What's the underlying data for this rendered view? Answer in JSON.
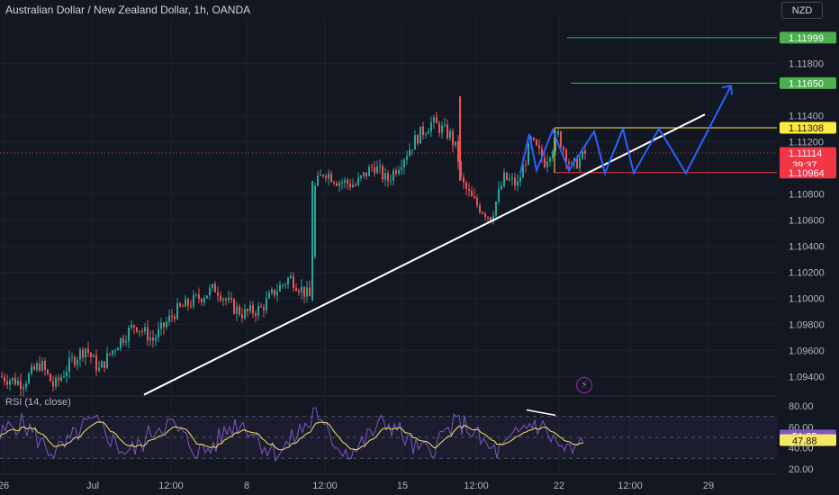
{
  "header": {
    "title": "Australian Dollar / New Zealand Dollar, 1h, OANDA",
    "currency": "NZD"
  },
  "rsi": {
    "label": "RSI (14, close)",
    "upper": 70,
    "lower": 30,
    "ticks": [
      "80.00",
      "60.00",
      "40.00",
      "20.00"
    ],
    "rsi_badge": "51.35",
    "ma_badge": "47.88",
    "rsi_color": "#7e57c2",
    "ma_color": "#f5e663"
  },
  "icons": {
    "alert": "lightning-icon"
  },
  "chart_data": {
    "type": "candlestick",
    "symbol": "AUDNZD",
    "timeframe": "1h",
    "ylim": [
      1.0925,
      1.1215
    ],
    "y_ticks": [
      "1.09400",
      "1.09600",
      "1.09800",
      "1.10000",
      "1.10200",
      "1.10400",
      "1.10600",
      "1.10800",
      "1.11200",
      "1.11400",
      "1.11800"
    ],
    "x_ticks": [
      "26",
      "Jul",
      "12:00",
      "8",
      "12:00",
      "15",
      "12:00",
      "22",
      "12:00",
      "29"
    ],
    "price_path": [
      [
        0,
        1.094
      ],
      [
        25,
        1.0935
      ],
      [
        45,
        1.095
      ],
      [
        60,
        1.0932
      ],
      [
        80,
        1.0952
      ],
      [
        95,
        1.0962
      ],
      [
        110,
        1.0945
      ],
      [
        130,
        1.0965
      ],
      [
        150,
        1.098
      ],
      [
        170,
        1.0968
      ],
      [
        195,
        1.099
      ],
      [
        215,
        1.0998
      ],
      [
        240,
        1.1008
      ],
      [
        255,
        1.0995
      ],
      [
        270,
        1.0988
      ],
      [
        290,
        1.0992
      ],
      [
        305,
        1.1005
      ],
      [
        322,
        1.1016
      ],
      [
        345,
        1.1
      ],
      [
        350,
        1.1085
      ],
      [
        360,
        1.1098
      ],
      [
        375,
        1.109
      ],
      [
        395,
        1.1087
      ],
      [
        415,
        1.1102
      ],
      [
        430,
        1.109
      ],
      [
        450,
        1.111
      ],
      [
        465,
        1.1125
      ],
      [
        480,
        1.1135
      ],
      [
        500,
        1.1125
      ],
      [
        508,
        1.1112
      ],
      [
        512,
        1.109
      ],
      [
        525,
        1.1075
      ],
      [
        545,
        1.1062
      ],
      [
        560,
        1.1092
      ],
      [
        575,
        1.1087
      ],
      [
        590,
        1.112
      ],
      [
        605,
        1.1105
      ],
      [
        620,
        1.1125
      ],
      [
        635,
        1.11
      ],
      [
        650,
        1.1111
      ]
    ],
    "levels": [
      {
        "label": "1.11999",
        "value": 1.11999,
        "color": "#4caf50",
        "text_color": "#ffffff"
      },
      {
        "label": "1.11650",
        "value": 1.1165,
        "color": "#4caf50",
        "text_color": "#ffffff"
      },
      {
        "label": "1.11308",
        "value": 1.11308,
        "color": "#ffeb3b",
        "text_color": "#131722"
      },
      {
        "label": "1.11114",
        "value": 1.11114,
        "color": "#f23645",
        "text_color": "#ffffff"
      },
      {
        "label": "1.10964",
        "value": 1.10964,
        "color": "#f23645",
        "text_color": "#ffffff"
      }
    ],
    "countdown": "39:37",
    "trendline": {
      "from": [
        160,
        1.0926
      ],
      "to": [
        783,
        1.1141
      ],
      "color": "#ffffff"
    },
    "projection": {
      "color": "#2962ff",
      "points": [
        [
          578,
          1.1096
        ],
        [
          588,
          1.1126
        ],
        [
          596,
          1.1098
        ],
        [
          614,
          1.1129
        ],
        [
          632,
          1.1098
        ],
        [
          660,
          1.1128
        ],
        [
          672,
          1.1096
        ],
        [
          692,
          1.113
        ],
        [
          704,
          1.1096
        ],
        [
          732,
          1.113
        ],
        [
          762,
          1.1096
        ],
        [
          812,
          1.1163
        ]
      ]
    },
    "up_color": "#26a69a",
    "down_color": "#ef5350",
    "grid": true
  }
}
